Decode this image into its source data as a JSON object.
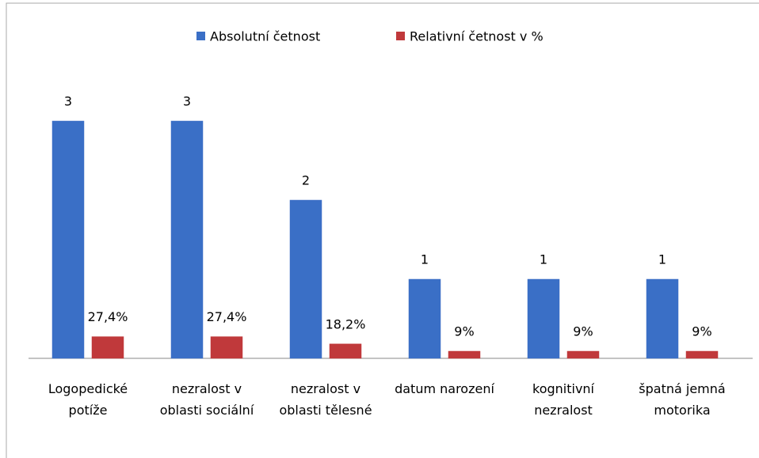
{
  "chart_data": {
    "type": "bar",
    "categories": [
      "Logopedické potíže",
      "nezralost v oblasti sociální",
      "nezralost v oblasti tělesné",
      "datum narození",
      "kognitivní nezralost",
      "špatná jemná motorika"
    ],
    "series": [
      {
        "name": "Absolutní četnost",
        "color": "#3a6fc6",
        "values": [
          3,
          3,
          2,
          1,
          1,
          1
        ]
      },
      {
        "name": "Relativní četnost v %",
        "color": "#c0393b",
        "values": [
          0.274,
          0.274,
          0.182,
          0.09,
          0.09,
          0.09
        ],
        "value_labels": [
          "27,4%",
          "27,4%",
          "18,2%",
          "9%",
          "9%",
          "9%"
        ]
      }
    ],
    "ylim": [
      0,
      3.4
    ],
    "legend": "top"
  }
}
